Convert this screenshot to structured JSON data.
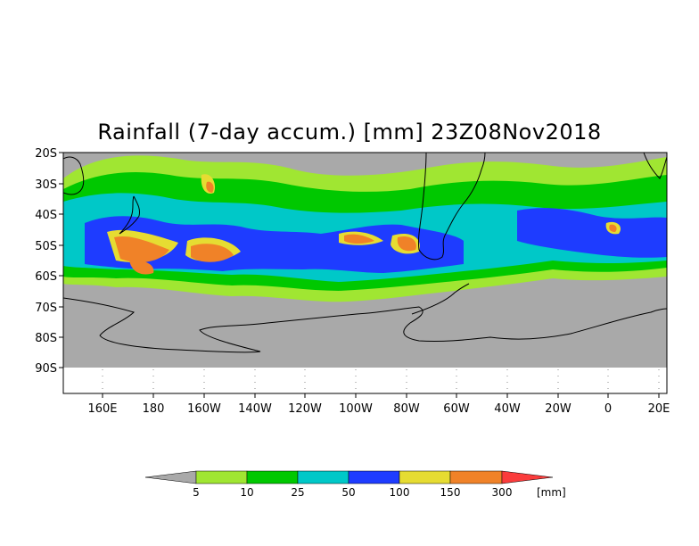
{
  "title": "Rainfall (7-day accum.) [mm] 23Z08Nov2018",
  "map": {
    "lat_ticks": [
      "20S",
      "30S",
      "40S",
      "50S",
      "60S",
      "70S",
      "80S",
      "90S"
    ],
    "lon_ticks": [
      "160E",
      "180",
      "160W",
      "140W",
      "120W",
      "100W",
      "80W",
      "60W",
      "40W",
      "20W",
      "0",
      "20E"
    ],
    "colors": {
      "no_rain": "#a9a9a9",
      "land_outline": "#000000",
      "lt5": "#a9a9a9",
      "c5_10": "#a0e632",
      "c10_25": "#00c800",
      "c25_50": "#00c8c8",
      "c50_100": "#1e3cff",
      "c100_150": "#e6dc32",
      "c150_300": "#f08228",
      "gt300": "#fa3c3c"
    }
  },
  "colorbar": {
    "labels": [
      "5",
      "10",
      "25",
      "50",
      "100",
      "150",
      "300"
    ],
    "unit": "[mm]",
    "colors": [
      "#a9a9a9",
      "#a0e632",
      "#00c800",
      "#00c8c8",
      "#1e3cff",
      "#e6dc32",
      "#f08228",
      "#fa3c3c"
    ]
  }
}
